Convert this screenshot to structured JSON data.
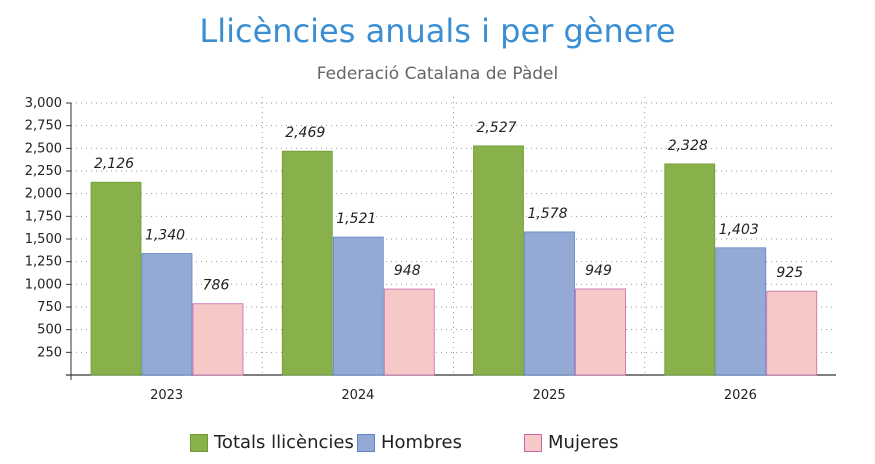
{
  "chart_data": {
    "type": "bar",
    "title": "Llicències anuals i per gènere",
    "subtitle": "Federació Catalana de Pàdel",
    "categories": [
      "2023",
      "2024",
      "2025",
      "2026"
    ],
    "series": [
      {
        "name": "Totals llicències",
        "values": [
          2126,
          2469,
          2527,
          2328
        ],
        "labels": [
          "2,126",
          "2,469",
          "2,527",
          "2,328"
        ],
        "color": "#88b04b",
        "border": "#6f9a34"
      },
      {
        "name": "Hombres",
        "values": [
          1340,
          1521,
          1578,
          1403
        ],
        "labels": [
          "1,340",
          "1,521",
          "1,578",
          "1,403"
        ],
        "color": "#94aad4",
        "border": "#5b86c8"
      },
      {
        "name": "Mujeres",
        "values": [
          786,
          948,
          949,
          925
        ],
        "labels": [
          "786",
          "948",
          "949",
          "925"
        ],
        "color": "#f6c8c8",
        "border": "#cc66aa"
      }
    ],
    "yticks": [
      "250",
      "500",
      "750",
      "1,000",
      "1,250",
      "1,500",
      "1,750",
      "2,000",
      "2,250",
      "2,500",
      "2,750",
      "3,000"
    ],
    "ytick_values": [
      250,
      500,
      750,
      1000,
      1250,
      1500,
      1750,
      2000,
      2250,
      2500,
      2750,
      3000
    ],
    "ylim": [
      0,
      3000
    ],
    "xlabel": "",
    "ylabel": "",
    "grid": true,
    "legend": "bottom"
  }
}
